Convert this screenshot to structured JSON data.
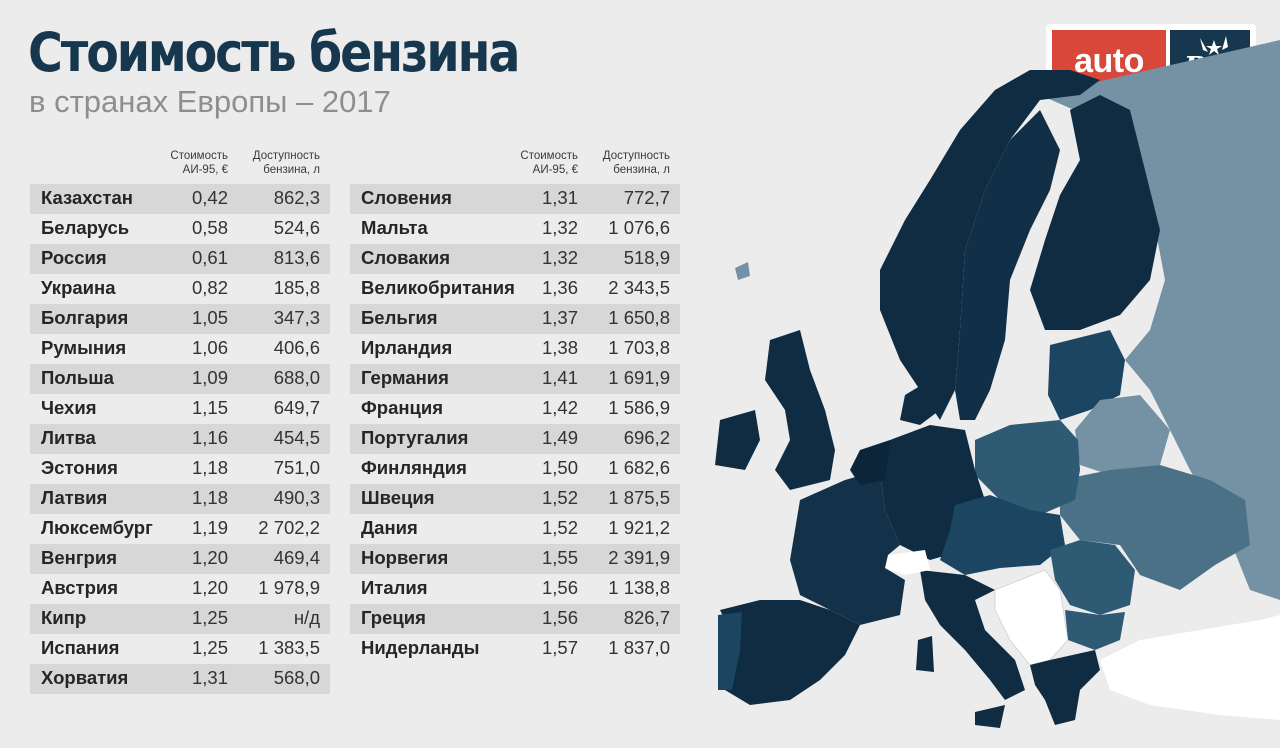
{
  "header": {
    "title": "Стоимость бензина",
    "subtitle": "в странах Европы – 2017"
  },
  "logo": {
    "auto_text": "auto",
    "ria_text": "RIA"
  },
  "columns": {
    "price_line1": "Стоимость",
    "price_line2": "АИ-95, €",
    "avail_line1": "Доступность",
    "avail_line2": "бензина, л"
  },
  "table_left": [
    {
      "country": "Казахстан",
      "price": "0,42",
      "availability": "862,3"
    },
    {
      "country": "Беларусь",
      "price": "0,58",
      "availability": "524,6"
    },
    {
      "country": "Россия",
      "price": "0,61",
      "availability": "813,6"
    },
    {
      "country": "Украина",
      "price": "0,82",
      "availability": "185,8"
    },
    {
      "country": "Болгария",
      "price": "1,05",
      "availability": "347,3"
    },
    {
      "country": "Румыния",
      "price": "1,06",
      "availability": "406,6"
    },
    {
      "country": "Польша",
      "price": "1,09",
      "availability": "688,0"
    },
    {
      "country": "Чехия",
      "price": "1,15",
      "availability": "649,7"
    },
    {
      "country": "Литва",
      "price": "1,16",
      "availability": "454,5"
    },
    {
      "country": "Эстония",
      "price": "1,18",
      "availability": "751,0"
    },
    {
      "country": "Латвия",
      "price": "1,18",
      "availability": "490,3"
    },
    {
      "country": "Люксембург",
      "price": "1,19",
      "availability": "2 702,2"
    },
    {
      "country": "Венгрия",
      "price": "1,20",
      "availability": "469,4"
    },
    {
      "country": "Австрия",
      "price": "1,20",
      "availability": "1 978,9"
    },
    {
      "country": "Кипр",
      "price": "1,25",
      "availability": "н/д"
    },
    {
      "country": "Испания",
      "price": "1,25",
      "availability": "1 383,5"
    },
    {
      "country": "Хорватия",
      "price": "1,31",
      "availability": "568,0"
    }
  ],
  "table_right": [
    {
      "country": "Словения",
      "price": "1,31",
      "availability": "772,7"
    },
    {
      "country": "Мальта",
      "price": "1,32",
      "availability": "1 076,6"
    },
    {
      "country": "Словакия",
      "price": "1,32",
      "availability": "518,9"
    },
    {
      "country": "Великобритания",
      "price": "1,36",
      "availability": "2 343,5"
    },
    {
      "country": "Бельгия",
      "price": "1,37",
      "availability": "1 650,8"
    },
    {
      "country": "Ирландия",
      "price": "1,38",
      "availability": "1 703,8"
    },
    {
      "country": "Германия",
      "price": "1,41",
      "availability": "1 691,9"
    },
    {
      "country": "Франция",
      "price": "1,42",
      "availability": "1 586,9"
    },
    {
      "country": "Португалия",
      "price": "1,49",
      "availability": "696,2"
    },
    {
      "country": "Финляндия",
      "price": "1,50",
      "availability": "1 682,6"
    },
    {
      "country": "Швеция",
      "price": "1,52",
      "availability": "1 875,5"
    },
    {
      "country": "Дания",
      "price": "1,52",
      "availability": "1 921,2"
    },
    {
      "country": "Норвегия",
      "price": "1,55",
      "availability": "2 391,9"
    },
    {
      "country": "Италия",
      "price": "1,56",
      "availability": "1 138,8"
    },
    {
      "country": "Греция",
      "price": "1,56",
      "availability": "826,7"
    },
    {
      "country": "Нидерланды",
      "price": "1,57",
      "availability": "1 837,0"
    }
  ],
  "colors": {
    "title": "#17374e",
    "darkest": "#0f2c42",
    "dark": "#1b4560",
    "medium": "#2f5a73",
    "mid_light": "#4b7187",
    "light": "#7592a4",
    "white_country": "#ffffff",
    "logo_red": "#d9473a",
    "logo_navy": "#17374e"
  }
}
